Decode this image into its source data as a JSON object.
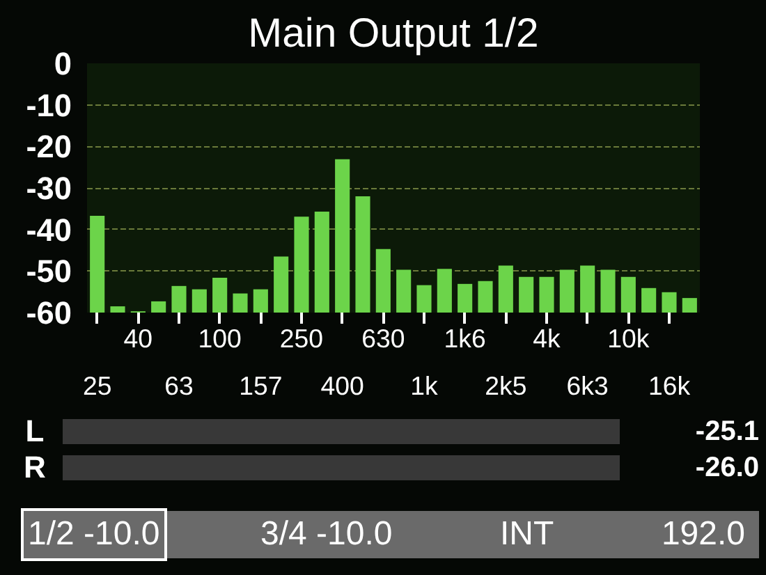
{
  "chart_data": [
    {
      "type": "bar",
      "title": "Main Output 1/2",
      "categories": [
        "25",
        null,
        "40",
        null,
        "63",
        null,
        "100",
        null,
        "157",
        null,
        "250",
        null,
        "400",
        null,
        "630",
        null,
        "1k",
        null,
        "1k6",
        null,
        "2k5",
        null,
        "4k",
        null,
        "6k3",
        null,
        "10k",
        null,
        "16k",
        null
      ],
      "base": [
        -60,
        -60,
        -60,
        -60,
        -60,
        -60,
        -60,
        -60,
        -60,
        -60,
        -60,
        -60,
        -60,
        -60,
        -60,
        -60,
        -60,
        -60,
        -60,
        -60,
        -60,
        -60,
        -60,
        -60,
        -60,
        -60,
        -60,
        -60,
        -60,
        -60
      ],
      "values": [
        23.3,
        1.5,
        0.3,
        2.7,
        6.4,
        5.6,
        8.4,
        4.6,
        5.6,
        13.5,
        23.1,
        24.3,
        36.9,
        28.0,
        15.3,
        10.3,
        6.6,
        10.5,
        6.9,
        7.6,
        11.3,
        8.6,
        8.6,
        10.3,
        11.3,
        10.3,
        8.6,
        5.9,
        4.9,
        3.5
      ],
      "color": "#6cd44a",
      "ylim": [
        -60,
        0
      ],
      "yticks": [
        0,
        -10,
        -20,
        -30,
        -40,
        -50,
        -60
      ],
      "grid": "y"
    },
    {
      "type": "other",
      "categories": [
        "L",
        "R"
      ],
      "values": [
        -25.1,
        -26.0
      ],
      "value_labels": [
        "-25.1",
        "-26.0"
      ],
      "annotations": [
        "1/2 -10.0",
        "3/4 -10.0",
        "INT",
        "192.0"
      ]
    }
  ]
}
